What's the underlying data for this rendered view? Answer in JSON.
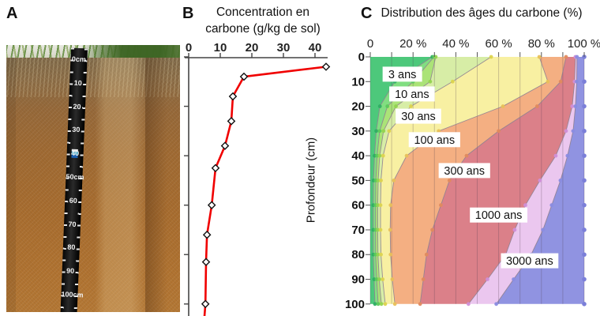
{
  "panels": {
    "a": {
      "label": "A",
      "photo_alt": "soil-profile-photo",
      "ruler": {
        "labels": [
          "0cm",
          "10",
          "20",
          "30",
          "40",
          "50cm",
          "60",
          "70",
          "80",
          "90",
          "100cm"
        ]
      }
    },
    "b": {
      "label": "B",
      "title_line1": "Concentration en",
      "title_line2": "carbone (g/kg de sol)"
    },
    "c": {
      "label": "C",
      "title": "Distribution des âges du carbone (%)",
      "ylabel": "Profondeur (cm)"
    }
  },
  "chart_data": [
    {
      "type": "line",
      "panel": "B",
      "title": "Concentration en carbone (g/kg de sol)",
      "xlabel": "Concentration en carbone (g/kg de sol)",
      "ylabel": "Profondeur (cm)",
      "xlim": [
        0,
        44
      ],
      "ylim": [
        0,
        105
      ],
      "xticks": [
        "0",
        "10",
        "20",
        "30",
        "40"
      ],
      "xtick_values": [
        0,
        10,
        20,
        30,
        40
      ],
      "ytick_values": [
        0,
        20,
        40,
        60,
        80,
        100
      ],
      "line_color": "#f00000",
      "marker": "diamond",
      "marker_fill": "#ffffff",
      "marker_stroke": "#111111",
      "series": [
        {
          "name": "concentration",
          "points": [
            [
              43.5,
              4
            ],
            [
              17.5,
              8
            ],
            [
              14,
              16
            ],
            [
              13.5,
              26
            ],
            [
              11.5,
              36
            ],
            [
              8.5,
              45
            ],
            [
              7.3,
              60
            ],
            [
              5.8,
              72
            ],
            [
              5.5,
              83
            ],
            [
              5.3,
              100
            ]
          ],
          "extension_point": [
            5.0,
            105
          ]
        }
      ]
    },
    {
      "type": "area",
      "panel": "C",
      "title": "Distribution des âges du carbone (%)",
      "ylabel": "Profondeur (cm)",
      "xlim": [
        0,
        100
      ],
      "ylim": [
        0,
        100
      ],
      "xticks": [
        "0",
        "20 %",
        "40 %",
        "60 %",
        "80 %",
        "100 %"
      ],
      "xtick_values": [
        0,
        20,
        40,
        60,
        80,
        100
      ],
      "yticks": [
        "0",
        "10",
        "20",
        "30",
        "40",
        "50",
        "60",
        "70",
        "80",
        "90",
        "100"
      ],
      "ytick_values": [
        0,
        10,
        20,
        30,
        40,
        50,
        60,
        70,
        80,
        90,
        100
      ],
      "grid": true,
      "depths": [
        0,
        10,
        20,
        30,
        40,
        50,
        60,
        70,
        80,
        90,
        100
      ],
      "boundaries_cumulative_pct": [
        {
          "id": "b1",
          "pct": [
            29,
            11.5,
            4.5,
            2.8,
            2.0,
            1.5,
            1.4,
            1.4,
            1.4,
            1.8,
            2.2
          ],
          "dot": "#2fae63"
        },
        {
          "id": "b2",
          "pct": [
            29.8,
            20,
            8,
            4.4,
            3.2,
            2.6,
            2.5,
            2.5,
            2.5,
            3.0,
            3.7
          ],
          "dot": "#5bc95b"
        },
        {
          "id": "b3",
          "pct": [
            30.6,
            28,
            12,
            6.2,
            4.4,
            3.7,
            3.5,
            3.5,
            3.6,
            4.2,
            5.2
          ],
          "dot": "#92d44f"
        },
        {
          "id": "b4",
          "pct": [
            56.5,
            38.5,
            19,
            8.8,
            6.0,
            5.0,
            4.8,
            4.8,
            5.0,
            5.8,
            7.0
          ],
          "dot": "#dcd44e"
        },
        {
          "id": "b5",
          "pct": [
            79,
            83,
            62,
            32,
            17,
            11,
            9.5,
            9.3,
            9.5,
            10.3,
            11.5
          ],
          "dot": "#e8c05a"
        },
        {
          "id": "b6",
          "pct": [
            91.5,
            89,
            78,
            60,
            45,
            37,
            33,
            29,
            26.3,
            24.8,
            23.3
          ],
          "dot": "#e08a5e"
        },
        {
          "id": "b7",
          "pct": [
            95.9,
            95.5,
            94.4,
            91.5,
            86.7,
            79.3,
            72.5,
            67.5,
            63.3,
            54.8,
            45.9
          ],
          "dot": "#d08fd8"
        },
        {
          "id": "b8",
          "pct": [
            96.6,
            96.5,
            95.9,
            94.8,
            92.2,
            88.9,
            84.8,
            80.7,
            75.2,
            67,
            58.9
          ],
          "dot": "#8a8ce0"
        }
      ],
      "band_colors": [
        "#4dc87b",
        "#81de81",
        "#abe377",
        "#d7eda6",
        "#f8f0a2",
        "#f4af82",
        "#db8089",
        "#ebc7ef",
        "#9093e1"
      ],
      "boundary_stroke": "#8e7f90",
      "gridline_color": "rgba(80,60,80,0.28)",
      "edge_dot_color": "#7b7fd8",
      "age_labels": [
        {
          "text": "3 ans",
          "pct": 15,
          "depth": 7
        },
        {
          "text": "10 ans",
          "pct": 19.5,
          "depth": 15
        },
        {
          "text": "30 ans",
          "pct": 22.5,
          "depth": 24
        },
        {
          "text": "100 ans",
          "pct": 30,
          "depth": 33.5
        },
        {
          "text": "300 ans",
          "pct": 44,
          "depth": 46
        },
        {
          "text": "1000 ans",
          "pct": 60,
          "depth": 64
        },
        {
          "text": "3000 ans",
          "pct": 74.5,
          "depth": 82.5
        }
      ]
    }
  ]
}
